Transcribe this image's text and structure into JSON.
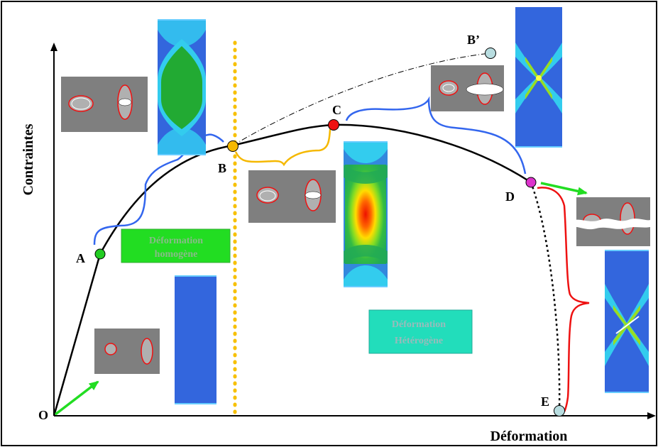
{
  "axes": {
    "y_label": "Contraintes",
    "x_label": "Déformation"
  },
  "points": {
    "O": "O",
    "A": "A",
    "B": "B",
    "B_prime": "B’",
    "C": "C",
    "D": "D",
    "E": "E"
  },
  "zones": {
    "homogeneous_line1": "Déformation",
    "homogeneous_line2": "homogène",
    "heterogeneous_line1": "Déformation",
    "heterogeneous_line2": "Hétérogène"
  },
  "colors": {
    "point_A": "#22cc22",
    "point_B": "#f5b800",
    "point_C": "#ee1111",
    "point_D": "#dd33cc",
    "point_E_Bp": "#b8dde0",
    "homogeneous_box": "#22dd22",
    "heterogeneous_box": "#22ddbb",
    "dotted_divider": "#f7c000",
    "bracket_blue": "#3366ee",
    "bracket_yellow": "#f5b800",
    "bracket_red": "#ee1111",
    "arrow_green": "#22dd22"
  }
}
